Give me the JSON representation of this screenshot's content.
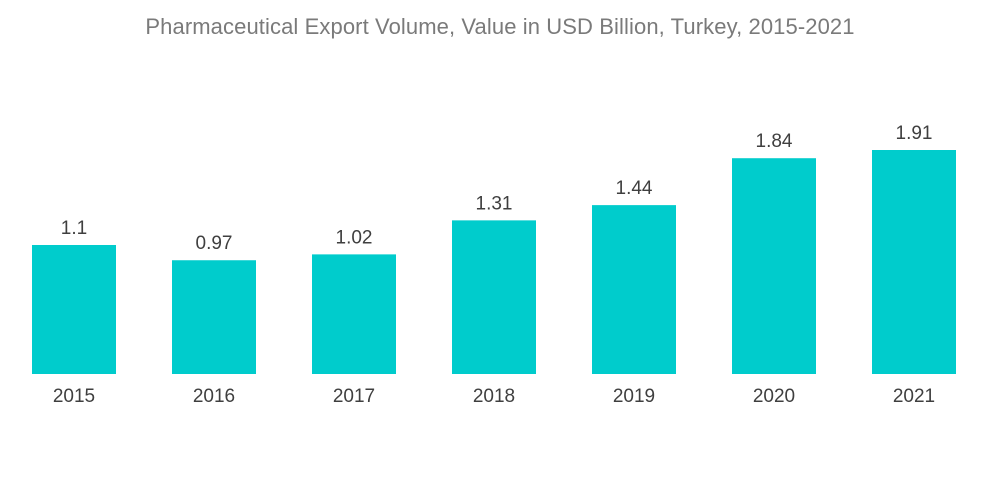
{
  "chart_data": {
    "type": "bar",
    "title": "Pharmaceutical Export Volume, Value in USD Billion, Turkey, 2015-2021",
    "xlabel": "",
    "ylabel": "",
    "categories": [
      "2015",
      "2016",
      "2017",
      "2018",
      "2019",
      "2020",
      "2021"
    ],
    "values": [
      1.1,
      0.97,
      1.02,
      1.31,
      1.44,
      1.84,
      1.91
    ],
    "data_labels": [
      "1.1",
      "0.97",
      "1.02",
      "1.31",
      "1.44",
      "1.84",
      "1.91"
    ],
    "ylim": [
      0,
      1.91
    ],
    "grid": false,
    "legend": "none",
    "bar_color": "#00cccc"
  }
}
